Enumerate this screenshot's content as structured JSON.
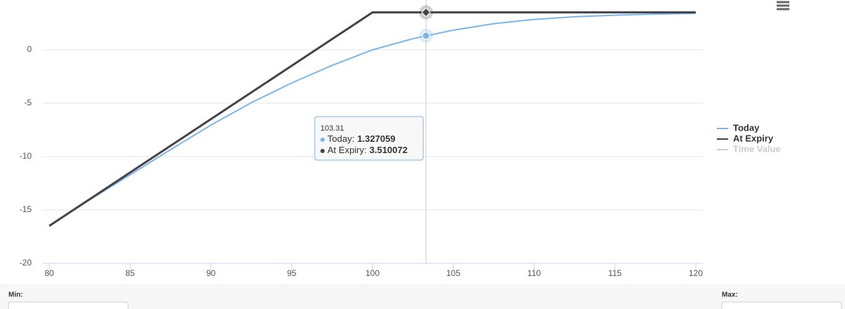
{
  "chart_data": {
    "type": "line",
    "x": [
      80,
      82.5,
      85,
      87.5,
      90,
      92.5,
      95,
      97.5,
      100,
      102.5,
      105,
      107.5,
      110,
      112.5,
      115,
      117.5,
      120
    ],
    "series": [
      {
        "name": "Today",
        "color": "#7cb5ec",
        "values": [
          -16.47,
          -14.05,
          -11.7,
          -9.35,
          -7.05,
          -4.95,
          -3.1,
          -1.45,
          0.0,
          1.05,
          1.85,
          2.45,
          2.85,
          3.1,
          3.25,
          3.35,
          3.42
        ]
      },
      {
        "name": "At Expiry",
        "color": "#434348",
        "values": [
          -16.49,
          -13.99,
          -11.49,
          -8.99,
          -6.49,
          -3.99,
          -1.49,
          1.01,
          3.51,
          3.51,
          3.51,
          3.51,
          3.51,
          3.51,
          3.51,
          3.51,
          3.51
        ]
      },
      {
        "name": "Time Value",
        "color": "#cccccc",
        "visible": false
      }
    ],
    "xlim": [
      80,
      120
    ],
    "xticks": [
      80,
      85,
      90,
      95,
      100,
      105,
      110,
      115,
      120
    ],
    "ylim": [
      -20,
      5
    ],
    "yticks": [
      -20,
      -15,
      -10,
      -5,
      0
    ],
    "grid": true,
    "legend": "right",
    "tooltip": {
      "x": 103.31,
      "rows": [
        {
          "name": "Today:",
          "value": 1.327059
        },
        {
          "name": "At Expiry:",
          "value": 3.510072
        }
      ]
    },
    "controls": {
      "min_label": "Min:",
      "max_label": "Max:"
    }
  }
}
